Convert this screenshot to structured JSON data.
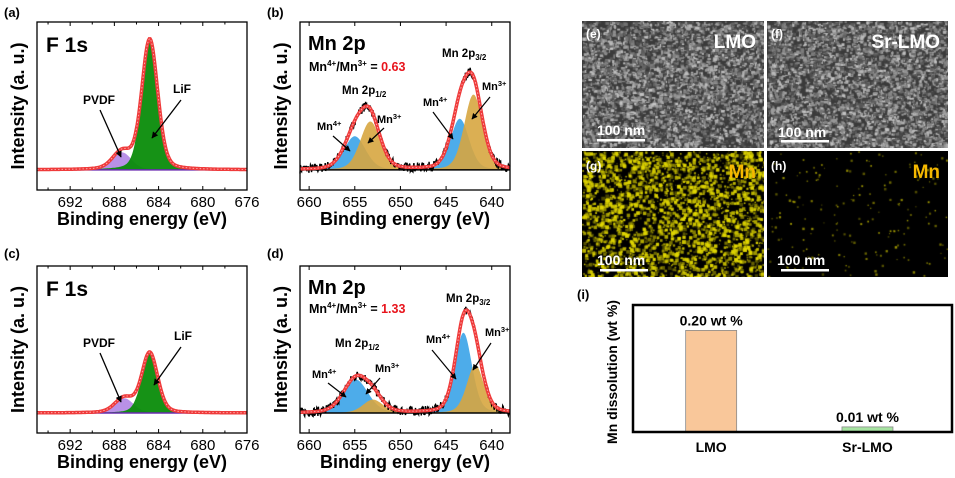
{
  "chart_data": [
    {
      "panel": "(a)",
      "type": "area",
      "title": "F 1s",
      "xlabel": "Binding energy (eV)",
      "ylabel": "Intensity (a. u.)",
      "xlim": [
        695,
        676
      ],
      "ylim": [
        -0.15,
        1.1
      ],
      "xticks": [
        692,
        688,
        684,
        680,
        676
      ],
      "components": [
        {
          "name": "PVDF",
          "center": 687.3,
          "amplitude": 0.13,
          "fwhm": 2.0,
          "color": "#b58be6"
        },
        {
          "name": "LiF",
          "center": 684.8,
          "amplitude": 0.97,
          "fwhm": 1.7,
          "color": "#0a8c0a"
        }
      ],
      "envelope_color": "#ef3b3b",
      "baseline_color": "#6a2bb0"
    },
    {
      "panel": "(b)",
      "type": "area",
      "title": "Mn 2p",
      "ratio": {
        "a": "Mn",
        "a_sup": "4+",
        "b": "/Mn",
        "b_sup": "3+",
        "eq": " = ",
        "value": "0.63",
        "value_color": "#e8141c"
      },
      "xlabel": "Binding energy (eV)",
      "ylabel": "Intensity (a. u.)",
      "xlim": [
        661,
        638
      ],
      "ylim": [
        -0.15,
        1.1
      ],
      "xticks": [
        660,
        655,
        650,
        645,
        640
      ],
      "peak_labels": [
        {
          "main": "Mn 2p",
          "sub": "1/2"
        },
        {
          "main": "Mn 2p",
          "sub": "3/2"
        }
      ],
      "components": [
        {
          "name": "Mn4+",
          "center": 655.0,
          "amplitude": 0.25,
          "fwhm": 2.8,
          "color": "#3aa3e8"
        },
        {
          "name": "Mn3+",
          "center": 653.3,
          "amplitude": 0.36,
          "fwhm": 2.6,
          "color": "#d7a640"
        },
        {
          "name": "Mn4+",
          "center": 643.5,
          "amplitude": 0.38,
          "fwhm": 2.4,
          "color": "#3aa3e8"
        },
        {
          "name": "Mn3+",
          "center": 642.0,
          "amplitude": 0.56,
          "fwhm": 2.4,
          "color": "#d7a640"
        }
      ],
      "envelope_color": "#ef3b3b",
      "baseline_color": "#000000"
    },
    {
      "panel": "(c)",
      "type": "area",
      "title": "F 1s",
      "xlabel": "Binding energy (eV)",
      "ylabel": "Intensity (a. u.)",
      "xlim": [
        695,
        676
      ],
      "ylim": [
        -0.15,
        1.1
      ],
      "xticks": [
        692,
        688,
        684,
        680,
        676
      ],
      "components": [
        {
          "name": "PVDF",
          "center": 687.1,
          "amplitude": 0.11,
          "fwhm": 2.0,
          "color": "#b58be6"
        },
        {
          "name": "LiF",
          "center": 684.8,
          "amplitude": 0.45,
          "fwhm": 1.7,
          "color": "#0a8c0a"
        }
      ],
      "envelope_color": "#ef3b3b",
      "baseline_color": "#6a2bb0"
    },
    {
      "panel": "(d)",
      "type": "area",
      "title": "Mn 2p",
      "ratio": {
        "a": "Mn",
        "a_sup": "4+",
        "b": "/Mn",
        "b_sup": "3+",
        "eq": " = ",
        "value": "1.33",
        "value_color": "#e8141c"
      },
      "xlabel": "Binding energy (eV)",
      "ylabel": "Intensity (a. u.)",
      "xlim": [
        661,
        638
      ],
      "ylim": [
        -0.15,
        1.1
      ],
      "xticks": [
        660,
        655,
        650,
        645,
        640
      ],
      "peak_labels": [
        {
          "main": "Mn 2p",
          "sub": "1/2"
        },
        {
          "main": "Mn 2p",
          "sub": "3/2"
        }
      ],
      "components": [
        {
          "name": "Mn4+",
          "center": 654.9,
          "amplitude": 0.25,
          "fwhm": 3.2,
          "color": "#3aa3e8"
        },
        {
          "name": "Mn3+",
          "center": 653.0,
          "amplitude": 0.1,
          "fwhm": 2.6,
          "color": "#d7a640"
        },
        {
          "name": "Mn4+",
          "center": 643.1,
          "amplitude": 0.6,
          "fwhm": 2.2,
          "color": "#3aa3e8"
        },
        {
          "name": "Mn3+",
          "center": 641.8,
          "amplitude": 0.36,
          "fwhm": 2.2,
          "color": "#d7a640"
        }
      ],
      "envelope_color": "#ef3b3b",
      "baseline_color": "#000000"
    },
    {
      "panel": "(i)",
      "type": "bar",
      "ylabel": "Mn dissolution (wt %)",
      "ylim": [
        0,
        0.25
      ],
      "categories": [
        "LMO",
        "Sr-LMO"
      ],
      "values": [
        0.2,
        0.01
      ],
      "data_labels": [
        "0.20 wt %",
        "0.01 wt %"
      ],
      "colors": [
        "#f9c79a",
        "#a6e3a1"
      ]
    }
  ],
  "images": [
    {
      "panel": "(e)",
      "label": "LMO",
      "scale_bar": "100 nm",
      "kind": "sem",
      "label_color": "#ffffff"
    },
    {
      "panel": "(f)",
      "label": "Sr-LMO",
      "scale_bar": "100 nm",
      "kind": "sem",
      "label_color": "#ffffff"
    },
    {
      "panel": "(g)",
      "label": "Mn",
      "scale_bar": "100 nm",
      "kind": "eds-dense",
      "label_color": "#f5b800"
    },
    {
      "panel": "(h)",
      "label": "Mn",
      "scale_bar": "100 nm",
      "kind": "eds-sparse",
      "label_color": "#f5b800"
    }
  ],
  "annotations": {
    "pvdf": "PVDF",
    "lif": "LiF",
    "mn": "Mn",
    "sup4": "4+",
    "sup3": "3+"
  }
}
